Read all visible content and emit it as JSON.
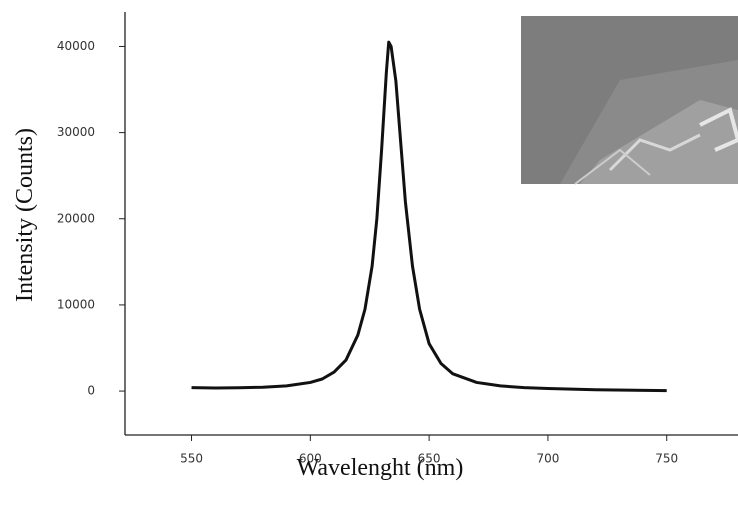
{
  "chart_data": {
    "type": "line",
    "xlabel": "Wavelenght (nm)",
    "ylabel": "Intensity (Counts)",
    "x": [
      550,
      560,
      570,
      580,
      590,
      600,
      605,
      610,
      615,
      620,
      623,
      626,
      628,
      630,
      632,
      633,
      634,
      636,
      638,
      640,
      643,
      646,
      650,
      655,
      660,
      670,
      680,
      690,
      700,
      720,
      750
    ],
    "values": [
      400,
      350,
      380,
      450,
      600,
      1000,
      1400,
      2200,
      3600,
      6500,
      9500,
      14500,
      20000,
      28000,
      37000,
      40500,
      40000,
      36000,
      29000,
      22000,
      14500,
      9500,
      5500,
      3200,
      2000,
      1000,
      600,
      400,
      300,
      150,
      50
    ],
    "color": "#111111",
    "xlim": [
      522,
      780
    ],
    "xticks": [
      550,
      600,
      650,
      700,
      750
    ],
    "ylim": [
      -5100,
      44000
    ],
    "yticks": [
      0,
      10000,
      20000,
      30000,
      40000
    ],
    "grid": false
  }
}
